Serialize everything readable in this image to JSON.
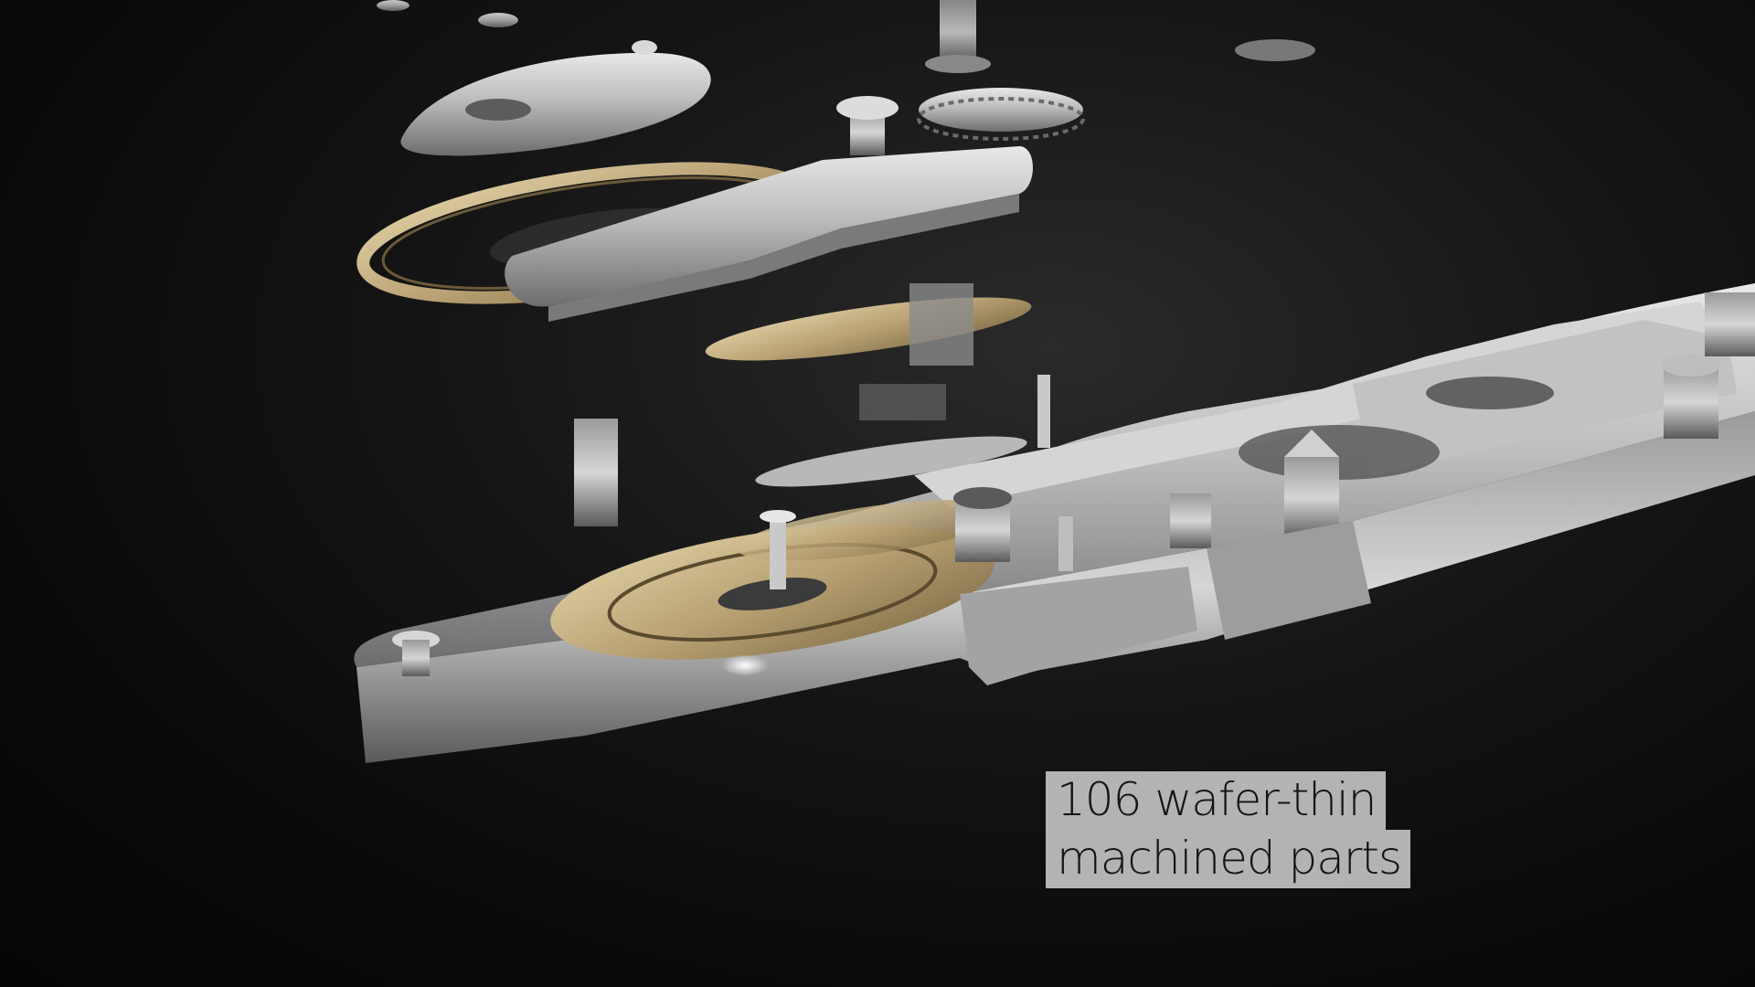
{
  "scene": {
    "subject": "exploded watch movement",
    "background_color": "#0b0b0b",
    "metal_color": "#c9c9c9",
    "gold_color": "#b8a37a"
  },
  "caption": {
    "line1": "106 wafer-thin",
    "line2": "machined parts",
    "box_color": "#e1e1e1",
    "text_color": "#141414"
  }
}
